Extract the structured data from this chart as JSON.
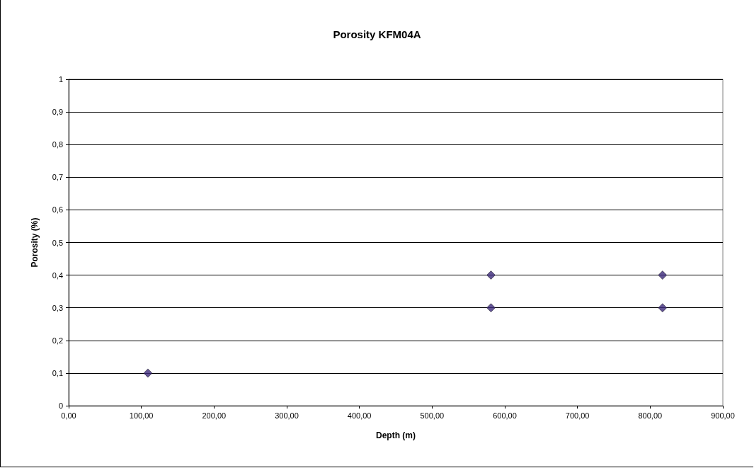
{
  "chart_data": {
    "type": "scatter",
    "title": "Porosity KFM04A",
    "xlabel": "Depth (m)",
    "ylabel": "Porosity (%)",
    "x": [
      109,
      581,
      581,
      817,
      817
    ],
    "series": [
      {
        "color": "#3d2a7c",
        "values": [
          0.1,
          0.4,
          0.3,
          0.4,
          0.3
        ]
      }
    ],
    "xlim": [
      0,
      900
    ],
    "xticks": [
      {
        "value": 0,
        "label": "0,00"
      },
      {
        "value": 100,
        "label": "100,00"
      },
      {
        "value": 200,
        "label": "200,00"
      },
      {
        "value": 300,
        "label": "300,00"
      },
      {
        "value": 400,
        "label": "400,00"
      },
      {
        "value": 500,
        "label": "500,00"
      },
      {
        "value": 600,
        "label": "600,00"
      },
      {
        "value": 700,
        "label": "700,00"
      },
      {
        "value": 800,
        "label": "800,00"
      },
      {
        "value": 900,
        "label": "900,00"
      }
    ],
    "ylim": [
      0,
      1
    ],
    "yticks": [
      0,
      {
        "value": 0.1,
        "label": "0,1"
      },
      {
        "value": 0.2,
        "label": "0,2"
      },
      {
        "value": 0.3,
        "label": "0,3"
      },
      {
        "value": 0.4,
        "label": "0,4"
      },
      {
        "value": 0.5,
        "label": "0,5"
      },
      {
        "value": 0.6,
        "label": "0,6"
      },
      {
        "value": 0.7,
        "label": "0,7"
      },
      {
        "value": 0.8,
        "label": "0,8"
      },
      {
        "value": 0.9,
        "label": "0,9"
      },
      1
    ],
    "grid": "y",
    "marker": "diamond"
  }
}
